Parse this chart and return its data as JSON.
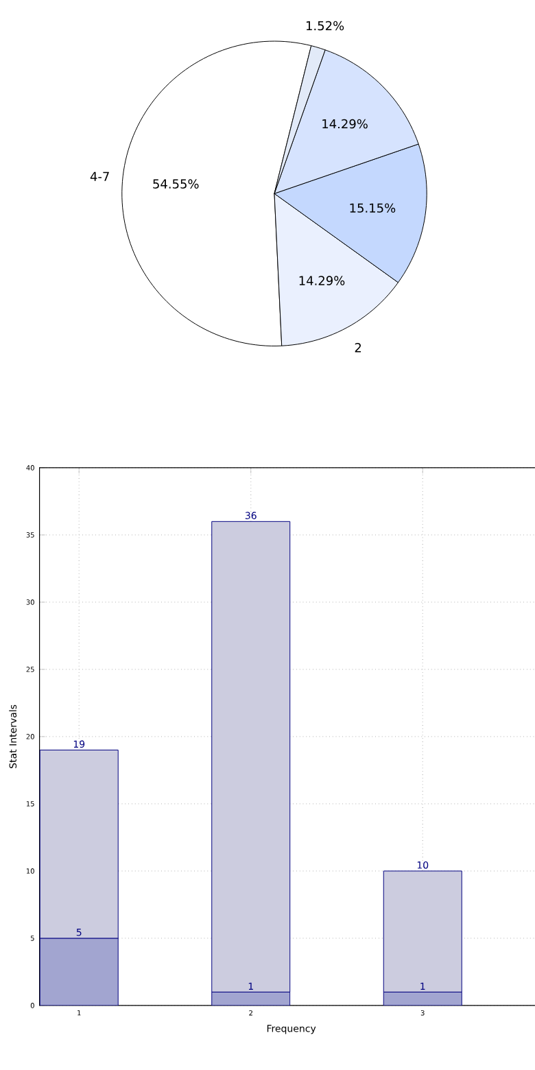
{
  "chart_data": [
    {
      "type": "pie",
      "categories": [
        "4-7",
        "2",
        null,
        null,
        null
      ],
      "values": [
        54.55,
        14.29,
        15.15,
        14.29,
        1.52
      ],
      "value_labels": [
        "54.55%",
        "14.29%",
        "15.15%",
        "14.29%",
        "1.52%"
      ],
      "colors": [
        "#ffffff",
        "#eaf0fe",
        "#c4d8fe",
        "#d6e3fe",
        "#e2eaf8"
      ]
    },
    {
      "type": "bar",
      "x": [
        1,
        2,
        3
      ],
      "xlim": [
        0.77,
        3.7
      ],
      "xticks": [
        1,
        2,
        3
      ],
      "ylim": [
        0,
        40
      ],
      "yticks": [
        0,
        5,
        10,
        15,
        20,
        25,
        30,
        35,
        40
      ],
      "xlabel": "Frequency",
      "ylabel": "Stat Intervals",
      "grid": true,
      "stacked": true,
      "series": [
        {
          "color": "#a2a5d0",
          "values": [
            5,
            1,
            1
          ],
          "value_labels": [
            "5",
            "1",
            "1"
          ]
        },
        {
          "color": "#ccccdf",
          "values": [
            14,
            35,
            9
          ]
        }
      ],
      "totals": [
        "19",
        "36",
        "10"
      ]
    }
  ]
}
